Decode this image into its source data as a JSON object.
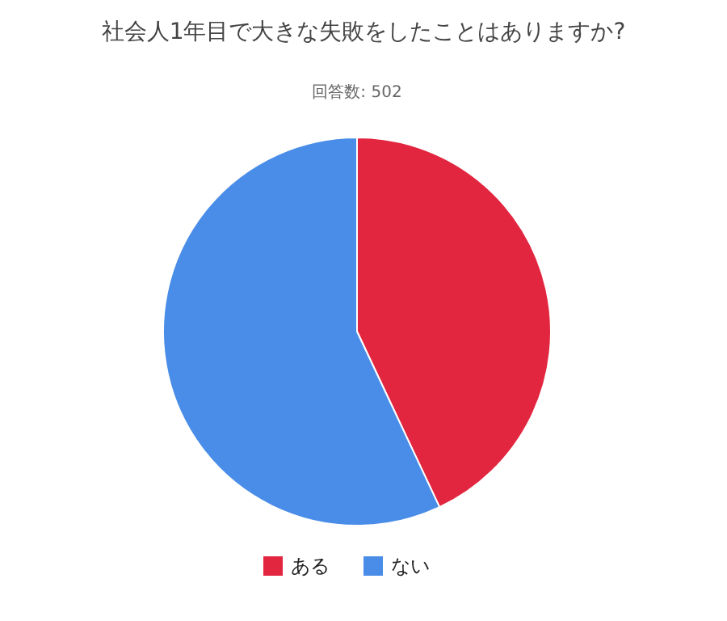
{
  "chart_data": {
    "type": "pie",
    "title": "社会人1年目で大きな失敗をしたことはありますか?",
    "subtitle": "回答数: 502",
    "categories": [
      "ある",
      "ない"
    ],
    "values": [
      43,
      57
    ],
    "colors": [
      "#e3263f",
      "#4a8de8"
    ],
    "legend": "bottom"
  }
}
